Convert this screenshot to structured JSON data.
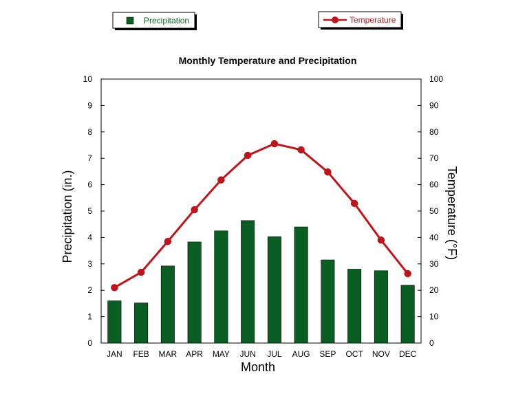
{
  "chart_data": {
    "type": "bar",
    "title": "Monthly Temperature and Precipitation",
    "xlabel": "Month",
    "ylabel": "Precipitation (in.)",
    "y2label": "Temperature (°F)",
    "ylim": [
      0,
      10
    ],
    "y2lim": [
      0,
      100
    ],
    "yticks": [
      "0",
      "1",
      "2",
      "3",
      "4",
      "5",
      "6",
      "7",
      "8",
      "9",
      "10"
    ],
    "y2ticks": [
      "0",
      "10",
      "20",
      "30",
      "40",
      "50",
      "60",
      "70",
      "80",
      "90",
      "100"
    ],
    "categories": [
      "JAN",
      "FEB",
      "MAR",
      "APR",
      "MAY",
      "JUN",
      "JUL",
      "AUG",
      "SEP",
      "OCT",
      "NOV",
      "DEC"
    ],
    "series": [
      {
        "name": "Precipitation",
        "type": "bar",
        "axis": "left",
        "color": "#0b5e23",
        "values": [
          1.6,
          1.52,
          2.92,
          3.83,
          4.25,
          4.64,
          4.03,
          4.4,
          3.15,
          2.8,
          2.74,
          2.19
        ]
      },
      {
        "name": "Temperature",
        "type": "line",
        "axis": "right",
        "color": "#c0141a",
        "values": [
          21,
          26.8,
          38.5,
          50.5,
          61.8,
          71.1,
          75.5,
          73.2,
          64.8,
          52.9,
          39,
          26.3
        ]
      }
    ],
    "legend": [
      "Precipitation",
      "Temperature"
    ],
    "legend_position": "top",
    "grid": false
  }
}
